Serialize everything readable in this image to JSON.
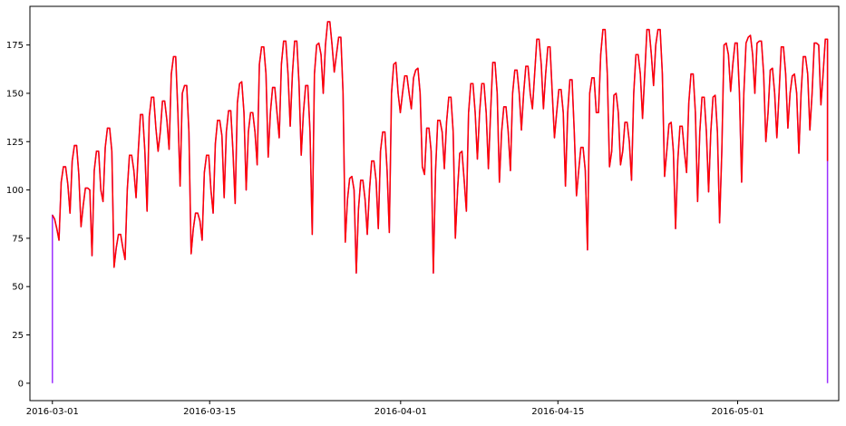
{
  "chart_data": {
    "type": "line",
    "title": "",
    "xlabel": "",
    "ylabel": "",
    "x_start": "2016-03-01",
    "x_end": "2016-05-09",
    "xlim": [
      "2016-02-28",
      "2016-05-10"
    ],
    "ylim": [
      -9,
      195
    ],
    "grid": false,
    "legend": "none",
    "x_ticks": [
      {
        "label": "2016-03-01",
        "date": "2016-03-01"
      },
      {
        "label": "2016-03-15",
        "date": "2016-03-15"
      },
      {
        "label": "2016-04-01",
        "date": "2016-04-01"
      },
      {
        "label": "2016-04-15",
        "date": "2016-04-15"
      },
      {
        "label": "2016-05-01",
        "date": "2016-05-01"
      }
    ],
    "y_ticks": [
      0,
      25,
      50,
      75,
      100,
      125,
      150,
      175
    ],
    "series": [
      {
        "color": "#9b30ff",
        "start_value": 0,
        "end_value": 0,
        "values": [
          87,
          85,
          80,
          74,
          104,
          112,
          112,
          103,
          88,
          115,
          123,
          123,
          108,
          81,
          92,
          101,
          101,
          100,
          66,
          110,
          120,
          120,
          100,
          94,
          122,
          132,
          132,
          120,
          60,
          70,
          77,
          77,
          70,
          64,
          100,
          118,
          118,
          110,
          96,
          120,
          139,
          139,
          120,
          89,
          138,
          148,
          148,
          132,
          120,
          130,
          146,
          146,
          136,
          121,
          160,
          169,
          169,
          140,
          102,
          150,
          154,
          154,
          130,
          67,
          80,
          88,
          88,
          84,
          74,
          109,
          118,
          118,
          100,
          88,
          124,
          136,
          136,
          128,
          96,
          130,
          141,
          141,
          120,
          93,
          145,
          155,
          156,
          140,
          100,
          130,
          140,
          140,
          130,
          113,
          165,
          174,
          174,
          160,
          117,
          140,
          153,
          153,
          140,
          127,
          165,
          177,
          177,
          160,
          133,
          160,
          177,
          177,
          155,
          118,
          140,
          154,
          154,
          130,
          77,
          160,
          175,
          176,
          170,
          150,
          175,
          187,
          187,
          175,
          161,
          170,
          179,
          179,
          150,
          73,
          95,
          106,
          107,
          100,
          57,
          90,
          105,
          105,
          95,
          77,
          100,
          115,
          115,
          105,
          80,
          120,
          130,
          130,
          110,
          78,
          150,
          165,
          166,
          150,
          140,
          150,
          159,
          159,
          150,
          142,
          158,
          162,
          163,
          150,
          112,
          108,
          132,
          132,
          120,
          57,
          110,
          136,
          136,
          130,
          111,
          135,
          148,
          148,
          130,
          75,
          100,
          119,
          120,
          105,
          89,
          140,
          155,
          155,
          140,
          116,
          140,
          155,
          155,
          140,
          111,
          140,
          166,
          166,
          150,
          104,
          130,
          143,
          143,
          130,
          110,
          150,
          162,
          162,
          150,
          131,
          150,
          164,
          164,
          150,
          142,
          160,
          178,
          178,
          165,
          142,
          160,
          174,
          174,
          150,
          127,
          140,
          152,
          152,
          140,
          102,
          140,
          157,
          157,
          130,
          97,
          110,
          122,
          122,
          110,
          69,
          150,
          158,
          158,
          140,
          140,
          170,
          183,
          183,
          160,
          112,
          120,
          149,
          150,
          140,
          113,
          120,
          135,
          135,
          125,
          105,
          150,
          170,
          170,
          160,
          137,
          160,
          183,
          183,
          170,
          154,
          175,
          183,
          183,
          160,
          107,
          120,
          134,
          135,
          120,
          80,
          115,
          133,
          133,
          120,
          109,
          145,
          160,
          160,
          140,
          94,
          130,
          148,
          148,
          130,
          99,
          130,
          148,
          149,
          130,
          83,
          120,
          175,
          176,
          170,
          151,
          165,
          176,
          176,
          150,
          104,
          150,
          176,
          179,
          180,
          170,
          150,
          176,
          177,
          177,
          160,
          125,
          140,
          162,
          163,
          150,
          127,
          150,
          174,
          174,
          160,
          132,
          150,
          159,
          160,
          150,
          119,
          150,
          169,
          169,
          160,
          131,
          150,
          176,
          176,
          175,
          144,
          160,
          178,
          178
        ]
      },
      {
        "color": "#ff0000",
        "start_value": 87,
        "end_value": 115,
        "values": [
          87,
          85,
          80,
          74,
          104,
          112,
          112,
          103,
          88,
          115,
          123,
          123,
          108,
          81,
          92,
          101,
          101,
          100,
          66,
          110,
          120,
          120,
          100,
          94,
          122,
          132,
          132,
          120,
          60,
          70,
          77,
          77,
          70,
          64,
          100,
          118,
          118,
          110,
          96,
          120,
          139,
          139,
          120,
          89,
          138,
          148,
          148,
          132,
          120,
          130,
          146,
          146,
          136,
          121,
          160,
          169,
          169,
          140,
          102,
          150,
          154,
          154,
          130,
          67,
          80,
          88,
          88,
          84,
          74,
          109,
          118,
          118,
          100,
          88,
          124,
          136,
          136,
          128,
          96,
          130,
          141,
          141,
          120,
          93,
          145,
          155,
          156,
          140,
          100,
          130,
          140,
          140,
          130,
          113,
          165,
          174,
          174,
          160,
          117,
          140,
          153,
          153,
          140,
          127,
          165,
          177,
          177,
          160,
          133,
          160,
          177,
          177,
          155,
          118,
          140,
          154,
          154,
          130,
          77,
          160,
          175,
          176,
          170,
          150,
          175,
          187,
          187,
          175,
          161,
          170,
          179,
          179,
          150,
          73,
          95,
          106,
          107,
          100,
          57,
          90,
          105,
          105,
          95,
          77,
          100,
          115,
          115,
          105,
          80,
          120,
          130,
          130,
          110,
          78,
          150,
          165,
          166,
          150,
          140,
          150,
          159,
          159,
          150,
          142,
          158,
          162,
          163,
          150,
          112,
          108,
          132,
          132,
          120,
          57,
          110,
          136,
          136,
          130,
          111,
          135,
          148,
          148,
          130,
          75,
          100,
          119,
          120,
          105,
          89,
          140,
          155,
          155,
          140,
          116,
          140,
          155,
          155,
          140,
          111,
          140,
          166,
          166,
          150,
          104,
          130,
          143,
          143,
          130,
          110,
          150,
          162,
          162,
          150,
          131,
          150,
          164,
          164,
          150,
          142,
          160,
          178,
          178,
          165,
          142,
          160,
          174,
          174,
          150,
          127,
          140,
          152,
          152,
          140,
          102,
          140,
          157,
          157,
          130,
          97,
          110,
          122,
          122,
          110,
          69,
          150,
          158,
          158,
          140,
          140,
          170,
          183,
          183,
          160,
          112,
          120,
          149,
          150,
          140,
          113,
          120,
          135,
          135,
          125,
          105,
          150,
          170,
          170,
          160,
          137,
          160,
          183,
          183,
          170,
          154,
          175,
          183,
          183,
          160,
          107,
          120,
          134,
          135,
          120,
          80,
          115,
          133,
          133,
          120,
          109,
          145,
          160,
          160,
          140,
          94,
          130,
          148,
          148,
          130,
          99,
          130,
          148,
          149,
          130,
          83,
          120,
          175,
          176,
          170,
          151,
          165,
          176,
          176,
          150,
          104,
          150,
          176,
          179,
          180,
          170,
          150,
          176,
          177,
          177,
          160,
          125,
          140,
          162,
          163,
          150,
          127,
          150,
          174,
          174,
          160,
          132,
          150,
          159,
          160,
          150,
          119,
          150,
          169,
          169,
          160,
          131,
          150,
          176,
          176,
          175,
          144,
          160,
          178,
          178
        ]
      }
    ]
  }
}
